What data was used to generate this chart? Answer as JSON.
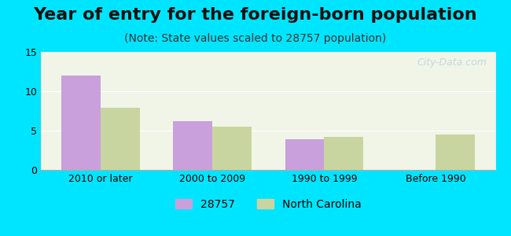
{
  "title": "Year of entry for the foreign-born population",
  "subtitle": "(Note: State values scaled to 28757 population)",
  "categories": [
    "2010 or later",
    "2000 to 2009",
    "1990 to 1999",
    "Before 1990"
  ],
  "values_28757": [
    12,
    6.2,
    3.9,
    0
  ],
  "values_nc": [
    7.9,
    5.5,
    4.2,
    4.5
  ],
  "color_28757": "#c9a0dc",
  "color_nc": "#c8d5a0",
  "background_outer": "#00e5ff",
  "background_inner": "#f0f5e8",
  "ylim": [
    0,
    15
  ],
  "yticks": [
    0,
    5,
    10,
    15
  ],
  "bar_width": 0.35,
  "legend_label_1": "28757",
  "legend_label_2": "North Carolina",
  "watermark": "City-Data.com",
  "title_fontsize": 16,
  "subtitle_fontsize": 10,
  "tick_fontsize": 9,
  "legend_fontsize": 10
}
